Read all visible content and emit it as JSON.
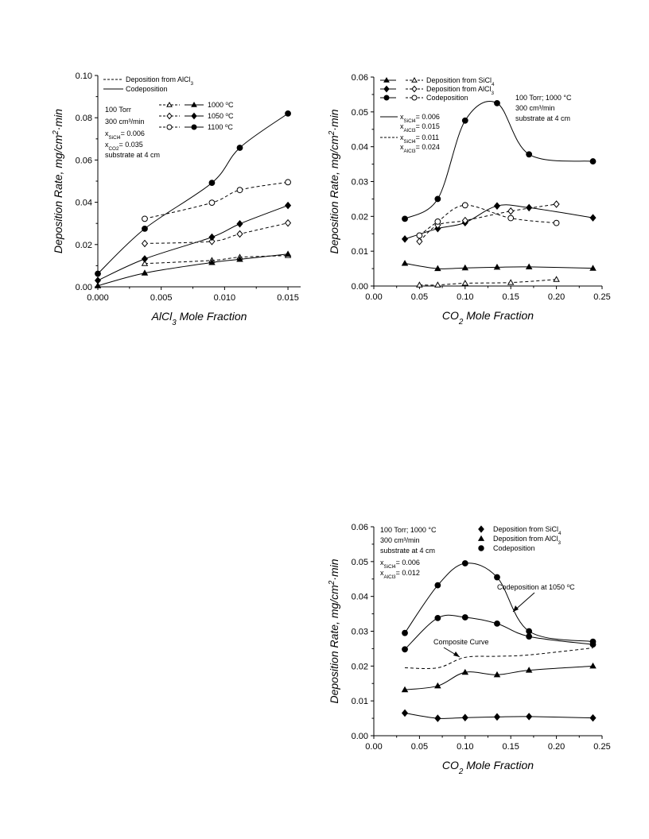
{
  "chart_data": [
    {
      "id": "c1",
      "type": "scatter",
      "xlabel": "AlCl",
      "xlabel_sub": "3",
      "xlabel_rest": " Mole Fraction",
      "ylabel": "Deposition Rate, mg/cm",
      "ylabel_sup": "2",
      "ylabel_rest": "·min",
      "xlim": [
        0,
        0.016
      ],
      "ylim": [
        0,
        0.1
      ],
      "xticks": [
        "0.000",
        "0.005",
        "0.010",
        "0.015"
      ],
      "xtick_values": [
        0,
        0.005,
        0.01,
        0.015
      ],
      "yticks": [
        "0.00",
        "0.02",
        "0.04",
        "0.06",
        "0.08",
        "0.10"
      ],
      "ytick_values": [
        0,
        0.02,
        0.04,
        0.06,
        0.08,
        0.1
      ],
      "conditions": [
        "100 Torr",
        "300 cm³/min",
        "x",
        "x",
        "substrate at 4 cm"
      ],
      "cond_x1": {
        "base": "x",
        "sub": "SiCl",
        "sub2": "4",
        "rest": "= 0.006"
      },
      "cond_x2": {
        "base": "x",
        "sub": "CO",
        "sub2": "2",
        "rest": "= 0.035"
      },
      "legend_lines": [
        {
          "style": "dashed",
          "label": "Deposition from AlCl",
          "sub": "3"
        },
        {
          "style": "solid",
          "label": "Codeposition"
        }
      ],
      "legend_temps": [
        {
          "label": "1000 ",
          "sup": "o",
          "rest": "C"
        },
        {
          "label": "1050 ",
          "sup": "o",
          "rest": "C"
        },
        {
          "label": "1100 ",
          "sup": "o",
          "rest": "C"
        }
      ],
      "series": [
        {
          "marker": "triangle",
          "filled": false,
          "curve": "dashed",
          "x": [
            0.0037,
            0.009,
            0.0112,
            0.015
          ],
          "y": [
            0.011,
            0.0125,
            0.014,
            0.0148
          ]
        },
        {
          "marker": "triangle",
          "filled": true,
          "curve": "solid",
          "x": [
            0,
            0.0037,
            0.009,
            0.0112,
            0.015
          ],
          "y": [
            0.0005,
            0.0065,
            0.0115,
            0.013,
            0.0155
          ]
        },
        {
          "marker": "diamond",
          "filled": false,
          "curve": "dashed",
          "x": [
            0.0037,
            0.009,
            0.0112,
            0.015
          ],
          "y": [
            0.0205,
            0.0215,
            0.025,
            0.0302
          ]
        },
        {
          "marker": "diamond",
          "filled": true,
          "curve": "solid",
          "x": [
            0,
            0.0037,
            0.009,
            0.0112,
            0.015
          ],
          "y": [
            0.003,
            0.0132,
            0.0235,
            0.0298,
            0.0385
          ]
        },
        {
          "marker": "circle",
          "filled": false,
          "curve": "dashed",
          "x": [
            0.0037,
            0.009,
            0.0112,
            0.015
          ],
          "y": [
            0.0322,
            0.0398,
            0.0458,
            0.0495
          ]
        },
        {
          "marker": "circle",
          "filled": true,
          "curve": "solid",
          "x": [
            0,
            0.0037,
            0.009,
            0.0112,
            0.015
          ],
          "y": [
            0.0062,
            0.0275,
            0.0492,
            0.0658,
            0.082
          ]
        }
      ]
    },
    {
      "id": "c2",
      "type": "scatter",
      "xlabel": "CO",
      "xlabel_sub": "2",
      "xlabel_rest": " Mole Fraction",
      "ylabel": "Deposition Rate, mg/cm",
      "ylabel_sup": "2",
      "ylabel_rest": "·min",
      "xlim": [
        0,
        0.25
      ],
      "ylim": [
        0,
        0.06
      ],
      "xticks": [
        "0.00",
        "0.05",
        "0.10",
        "0.15",
        "0.20",
        "0.25"
      ],
      "xtick_values": [
        0,
        0.05,
        0.1,
        0.15,
        0.2,
        0.25
      ],
      "yticks": [
        "0.00",
        "0.01",
        "0.02",
        "0.03",
        "0.04",
        "0.05",
        "0.06"
      ],
      "ytick_values": [
        0,
        0.01,
        0.02,
        0.03,
        0.04,
        0.05,
        0.06
      ],
      "legend_markers": [
        {
          "label": "Deposition from SiCl",
          "sub": "4"
        },
        {
          "label": "Deposition from AlCl",
          "sub": "3"
        },
        {
          "label": "Codeposition"
        }
      ],
      "legend_comp": [
        {
          "style": "solid",
          "a": "= 0.006",
          "b": "= 0.015"
        },
        {
          "style": "dashed",
          "a": "= 0.011",
          "b": "= 0.024"
        }
      ],
      "conditions": [
        "100 Torr; 1000 °C",
        "300 cm³/min",
        "substrate at 4 cm"
      ],
      "series": [
        {
          "marker": "triangle",
          "filled": true,
          "curve": "solid",
          "x": [
            0.034,
            0.07,
            0.1,
            0.135,
            0.17,
            0.24
          ],
          "y": [
            0.0065,
            0.005,
            0.0052,
            0.0054,
            0.0055,
            0.0051
          ]
        },
        {
          "marker": "triangle",
          "filled": false,
          "curve": "dashed",
          "x": [
            0.05,
            0.07,
            0.1,
            0.15,
            0.2
          ],
          "y": [
            0.0003,
            0.0003,
            0.0008,
            0.001,
            0.0019
          ]
        },
        {
          "marker": "diamond",
          "filled": true,
          "curve": "solid",
          "x": [
            0.034,
            0.07,
            0.1,
            0.135,
            0.17,
            0.24
          ],
          "y": [
            0.0135,
            0.0165,
            0.0182,
            0.023,
            0.0225,
            0.0196
          ]
        },
        {
          "marker": "diamond",
          "filled": false,
          "curve": "dashed",
          "x": [
            0.05,
            0.07,
            0.1,
            0.15,
            0.2
          ],
          "y": [
            0.0128,
            0.0175,
            0.0188,
            0.0215,
            0.0235
          ]
        },
        {
          "marker": "circle",
          "filled": true,
          "curve": "solid",
          "x": [
            0.034,
            0.07,
            0.1,
            0.135,
            0.17,
            0.24
          ],
          "y": [
            0.0193,
            0.025,
            0.0475,
            0.0525,
            0.0378,
            0.0358
          ]
        },
        {
          "marker": "circle",
          "filled": false,
          "curve": "dashed",
          "x": [
            0.05,
            0.07,
            0.1,
            0.15,
            0.2
          ],
          "y": [
            0.0145,
            0.0185,
            0.0232,
            0.0195,
            0.0181
          ]
        }
      ]
    },
    {
      "id": "c3",
      "type": "scatter",
      "xlabel": "CO",
      "xlabel_sub": "2",
      "xlabel_rest": " Mole Fraction",
      "ylabel": "Deposition Rate, mg/cm",
      "ylabel_sup": "2",
      "ylabel_rest": "·min",
      "xlim": [
        0,
        0.25
      ],
      "ylim": [
        0,
        0.06
      ],
      "xticks": [
        "0.00",
        "0.05",
        "0.10",
        "0.15",
        "0.20",
        "0.25"
      ],
      "xtick_values": [
        0,
        0.05,
        0.1,
        0.15,
        0.2,
        0.25
      ],
      "yticks": [
        "0.00",
        "0.01",
        "0.02",
        "0.03",
        "0.04",
        "0.05",
        "0.06"
      ],
      "ytick_values": [
        0,
        0.01,
        0.02,
        0.03,
        0.04,
        0.05,
        0.06
      ],
      "conditions": [
        "100 Torr; 1000 °C",
        "300 cm³/min",
        "substrate at 4 cm"
      ],
      "cond_x1": {
        "base": "x",
        "sub": "SiCl",
        "sub2": "4",
        "rest": "= 0.006"
      },
      "cond_x2": {
        "base": "x",
        "sub": "AlCl",
        "sub2": "3",
        "rest": "= 0.012"
      },
      "legend_markers": [
        {
          "marker": "diamond",
          "label": "Deposition from SiCl",
          "sub": "4"
        },
        {
          "marker": "triangle",
          "label": "Deposition from AlCl",
          "sub": "3"
        },
        {
          "marker": "circle",
          "label": "Codeposition"
        }
      ],
      "annotations": [
        "Codeposition at 1050 ",
        "Composite Curve"
      ],
      "annotation_sup": "o",
      "annotation_rest": "C",
      "series": [
        {
          "marker": "diamond",
          "filled": true,
          "curve": "solid",
          "x": [
            0.034,
            0.07,
            0.1,
            0.135,
            0.17,
            0.24
          ],
          "y": [
            0.0065,
            0.005,
            0.0052,
            0.0054,
            0.0055,
            0.0051
          ]
        },
        {
          "marker": "triangle",
          "filled": true,
          "curve": "solid",
          "x": [
            0.034,
            0.07,
            0.1,
            0.135,
            0.17,
            0.24
          ],
          "y": [
            0.0132,
            0.0143,
            0.0182,
            0.0175,
            0.0188,
            0.02
          ]
        },
        {
          "marker": "circle",
          "filled": true,
          "curve": "solid",
          "x": [
            0.034,
            0.07,
            0.1,
            0.135,
            0.17,
            0.24
          ],
          "y": [
            0.0248,
            0.0338,
            0.034,
            0.0322,
            0.0285,
            0.0262
          ]
        },
        {
          "marker": "circle",
          "filled": true,
          "curve": "solid",
          "x": [
            0.034,
            0.07,
            0.1,
            0.135,
            0.17,
            0.24
          ],
          "y": [
            0.0295,
            0.0432,
            0.0495,
            0.0455,
            0.03,
            0.027
          ]
        },
        {
          "marker": "none",
          "filled": false,
          "curve": "dashed",
          "x": [
            0.034,
            0.07,
            0.1,
            0.135,
            0.17,
            0.24
          ],
          "y": [
            0.0195,
            0.0195,
            0.0225,
            0.0228,
            0.0232,
            0.0252
          ]
        }
      ]
    }
  ]
}
